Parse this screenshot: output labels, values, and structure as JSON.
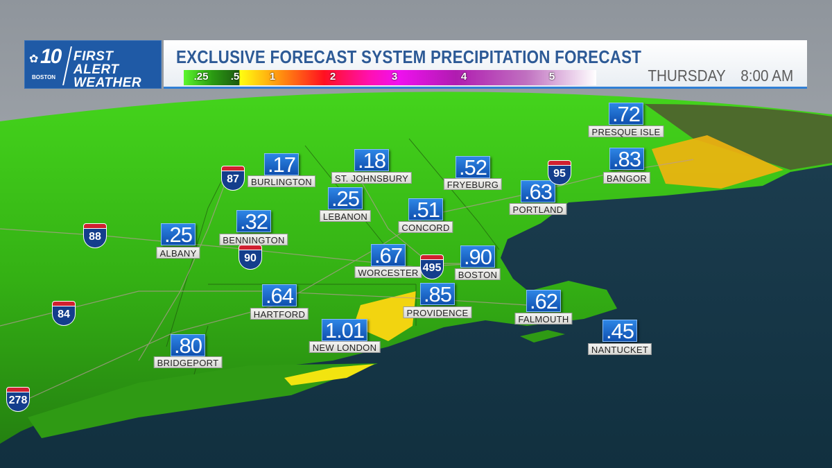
{
  "logo": {
    "number": "10",
    "station": "BOSTON",
    "brand_line1": "FIRST ALERT",
    "brand_line2": "WEATHER"
  },
  "header": {
    "title": "EXCLUSIVE FORECAST SYSTEM PRECIPITATION FORECAST",
    "day": "THURSDAY",
    "time": "8:00 AM"
  },
  "legend": {
    "unit_ticks": [
      ".25",
      ".5",
      "1",
      "2",
      "3",
      "4",
      "5"
    ],
    "colors": [
      "#5af52c",
      "#1d5a10",
      "#ffff10",
      "#ff1020",
      "#f010f0",
      "#b01cb0",
      "#ffffff"
    ]
  },
  "cities": [
    {
      "name": "PRESQUE ISLE",
      "value": ".72"
    },
    {
      "name": "BURLINGTON",
      "value": ".17"
    },
    {
      "name": "ST. JOHNSBURY",
      "value": ".18"
    },
    {
      "name": "FRYEBURG",
      "value": ".52"
    },
    {
      "name": "BANGOR",
      "value": ".83"
    },
    {
      "name": "PORTLAND",
      "value": ".63"
    },
    {
      "name": "LEBANON",
      "value": ".25"
    },
    {
      "name": "CONCORD",
      "value": ".51"
    },
    {
      "name": "ALBANY",
      "value": ".25"
    },
    {
      "name": "BENNINGTON",
      "value": ".32"
    },
    {
      "name": "WORCESTER",
      "value": ".67"
    },
    {
      "name": "BOSTON",
      "value": ".90"
    },
    {
      "name": "HARTFORD",
      "value": ".64"
    },
    {
      "name": "PROVIDENCE",
      "value": ".85"
    },
    {
      "name": "FALMOUTH",
      "value": ".62"
    },
    {
      "name": "NANTUCKET",
      "value": ".45"
    },
    {
      "name": "NEW LONDON",
      "value": "1.01"
    },
    {
      "name": "BRIDGEPORT",
      "value": ".80"
    }
  ],
  "interstates": [
    "87",
    "88",
    "90",
    "84",
    "278",
    "495",
    "95"
  ],
  "colors": {
    "land": "#3fc21a",
    "ocean": "#163748",
    "heavy_rain": "#f5d000",
    "sky": "#9aa0a6",
    "value_box": "#1a63c6"
  }
}
